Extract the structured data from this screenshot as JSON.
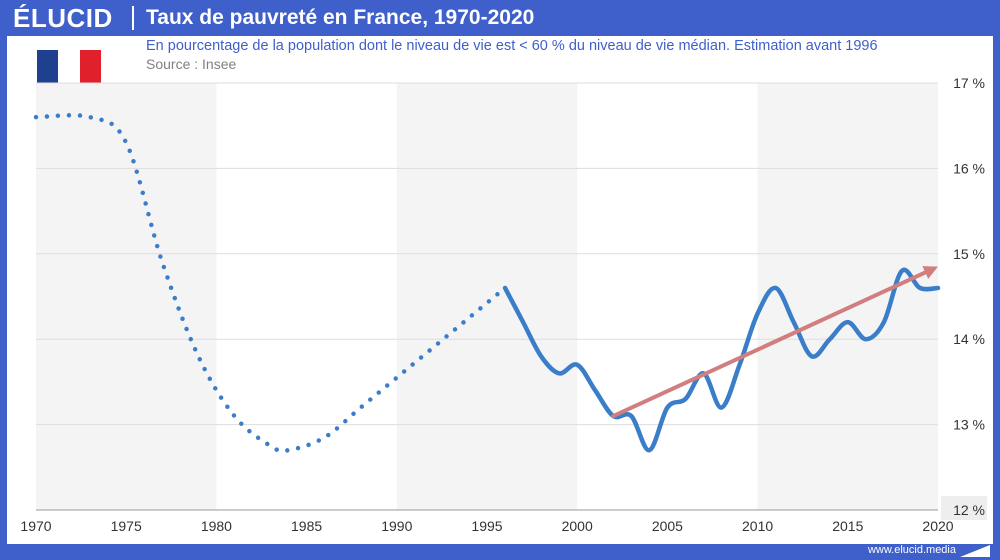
{
  "brand": {
    "logo": "ÉLUCID",
    "url": "www.elucid.media"
  },
  "chart_data": {
    "type": "line",
    "title": "Taux de pauvreté en France, 1970-2020",
    "subtitle": "En pourcentage de la population dont le niveau de vie est < 60 % du niveau de vie médian. Estimation avant 1996",
    "source": "Source : Insee",
    "xlim": [
      1970,
      2020
    ],
    "ylim": [
      12,
      17
    ],
    "x_ticks": [
      1970,
      1975,
      1980,
      1985,
      1990,
      1995,
      2000,
      2005,
      2010,
      2015,
      2020
    ],
    "x_tick_labels": [
      "1970",
      "1975",
      "1980",
      "1985",
      "1990",
      "1995",
      "2000",
      "2005",
      "2010",
      "2015",
      "2020"
    ],
    "y_ticks": [
      12,
      13,
      14,
      15,
      16,
      17
    ],
    "y_tick_labels": [
      "12 %",
      "13 %",
      "14 %",
      "15 %",
      "16 %",
      "17 %"
    ],
    "y_axis_position": "right",
    "shaded_bands": [
      [
        1970,
        1980
      ],
      [
        1990,
        2000
      ],
      [
        2010,
        2020
      ]
    ],
    "series": [
      {
        "name": "Estimation avant 1996",
        "style": "dotted",
        "color": "#3a7dc8",
        "x": [
          1970,
          1973,
          1975,
          1977,
          1979,
          1981,
          1983,
          1984,
          1986,
          1988,
          1990,
          1992,
          1994,
          1996
        ],
        "y": [
          16.6,
          16.6,
          16.3,
          14.9,
          13.8,
          13.1,
          12.75,
          12.7,
          12.85,
          13.2,
          13.55,
          13.9,
          14.25,
          14.6
        ]
      },
      {
        "name": "Insee",
        "style": "solid",
        "color": "#3a7dc8",
        "x": [
          1996,
          1997,
          1998,
          1999,
          2000,
          2001,
          2002,
          2003,
          2004,
          2005,
          2006,
          2007,
          2008,
          2009,
          2010,
          2011,
          2012,
          2013,
          2014,
          2015,
          2016,
          2017,
          2018,
          2019,
          2020
        ],
        "y": [
          14.6,
          14.2,
          13.8,
          13.6,
          13.7,
          13.4,
          13.1,
          13.1,
          12.7,
          13.2,
          13.3,
          13.6,
          13.2,
          13.7,
          14.3,
          14.6,
          14.2,
          13.8,
          14.0,
          14.2,
          14.0,
          14.2,
          14.8,
          14.6,
          14.6
        ]
      }
    ],
    "trend_arrow": {
      "color": "#d07e7e",
      "from": [
        2002,
        13.1
      ],
      "to": [
        2020,
        14.85
      ]
    }
  }
}
